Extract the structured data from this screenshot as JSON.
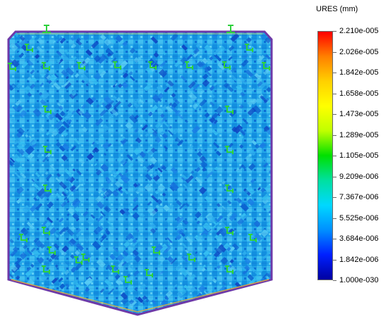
{
  "legend": {
    "title": "URES (mm)",
    "ticks": [
      "2.210e-005",
      "2.026e-005",
      "1.842e-005",
      "1.658e-005",
      "1.473e-005",
      "1.289e-005",
      "1.105e-005",
      "9.209e-006",
      "7.367e-006",
      "5.525e-006",
      "3.684e-006",
      "1.842e-006",
      "1.000e-030"
    ],
    "gradient_colors": [
      "#ff0000",
      "#ff8000",
      "#ffd000",
      "#ffff00",
      "#c0ff00",
      "#00e000",
      "#00e0a0",
      "#00d8ff",
      "#0090ff",
      "#0020ff",
      "#0000a0"
    ]
  },
  "model": {
    "fill_color": "#1f9fe8",
    "edge_color": "#7a3fb0",
    "fixture_icon_color": "#2ed13c"
  }
}
